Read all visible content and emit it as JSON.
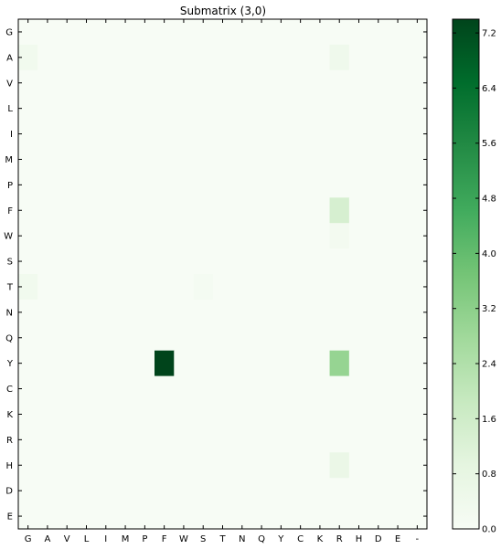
{
  "chart_data": {
    "type": "heatmap",
    "title": "Submatrix (3,0)",
    "xlabel": "",
    "ylabel": "",
    "x_categories": [
      "G",
      "A",
      "V",
      "L",
      "I",
      "M",
      "P",
      "F",
      "W",
      "S",
      "T",
      "N",
      "Q",
      "Y",
      "C",
      "K",
      "R",
      "H",
      "D",
      "E",
      "-"
    ],
    "y_categories": [
      "G",
      "A",
      "V",
      "L",
      "I",
      "M",
      "P",
      "F",
      "W",
      "S",
      "T",
      "N",
      "Q",
      "Y",
      "C",
      "K",
      "R",
      "H",
      "D",
      "E"
    ],
    "colormap": "Greens",
    "vmin": 0.0,
    "vmax": 7.4,
    "colorbar_ticks": [
      "0.0",
      "0.8",
      "1.6",
      "2.4",
      "3.2",
      "4.0",
      "4.8",
      "5.6",
      "6.4",
      "7.2"
    ],
    "colorbar_tick_values": [
      0.0,
      0.8,
      1.6,
      2.4,
      3.2,
      4.0,
      4.8,
      5.6,
      6.4,
      7.2
    ],
    "nonzero_cells": [
      {
        "row": "A",
        "col": "G",
        "value": 0.3
      },
      {
        "row": "A",
        "col": "R",
        "value": 0.4
      },
      {
        "row": "F",
        "col": "R",
        "value": 1.4
      },
      {
        "row": "W",
        "col": "R",
        "value": 0.2
      },
      {
        "row": "T",
        "col": "G",
        "value": 0.3
      },
      {
        "row": "T",
        "col": "S",
        "value": 0.15
      },
      {
        "row": "Y",
        "col": "F",
        "value": 7.4
      },
      {
        "row": "Y",
        "col": "R",
        "value": 3.0
      },
      {
        "row": "H",
        "col": "R",
        "value": 0.6
      }
    ],
    "default_value": 0.0
  }
}
